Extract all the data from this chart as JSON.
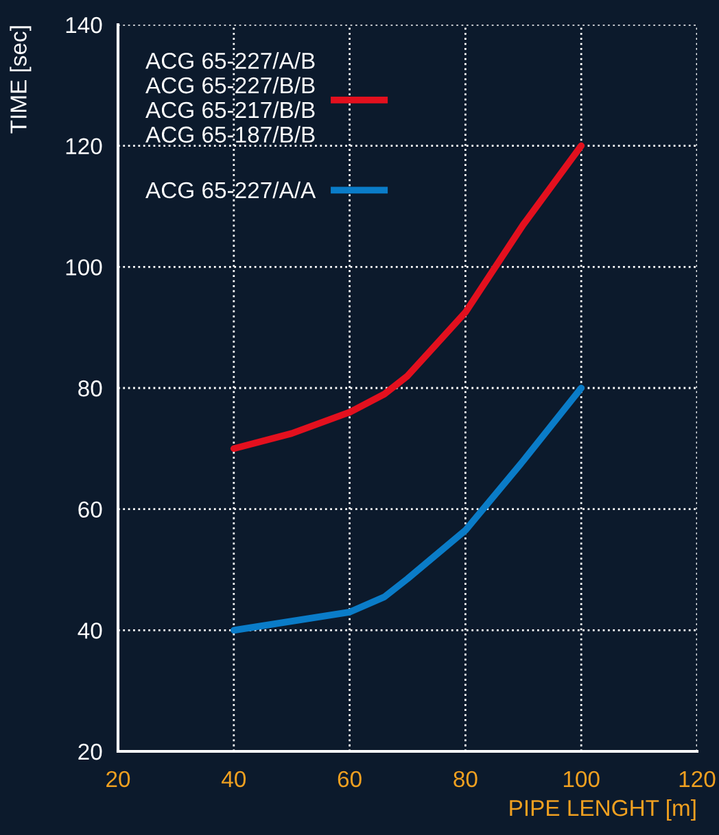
{
  "chart_data": {
    "type": "line",
    "xlabel": "PIPE LENGHT [m]",
    "ylabel": "TIME [sec]",
    "xlim": [
      20,
      120
    ],
    "xticks": [
      20,
      40,
      60,
      80,
      100,
      120
    ],
    "ylim": [
      20,
      140
    ],
    "yticks": [
      20,
      40,
      60,
      80,
      100,
      120,
      140
    ],
    "grid": true,
    "legend": "top left",
    "line_style": "solid",
    "marker": "none",
    "series": [
      {
        "name": "ACG 65-227/A/B\nACG 65-227/B/B\nACG 65-217/B/B\nACG 65-187/B/B",
        "color": "#e3101e",
        "x": [
          40,
          50,
          60,
          66,
          70,
          80,
          90,
          100
        ],
        "values": [
          70,
          72.5,
          76,
          79,
          82,
          92.5,
          107,
          120
        ]
      },
      {
        "name": "ACG 65-227/A/A",
        "color": "#0a7cc8",
        "x": [
          40,
          50,
          60,
          66,
          70,
          80,
          90,
          100
        ],
        "values": [
          40,
          41.5,
          43,
          45.5,
          48.5,
          56.5,
          68,
          80
        ]
      }
    ]
  }
}
